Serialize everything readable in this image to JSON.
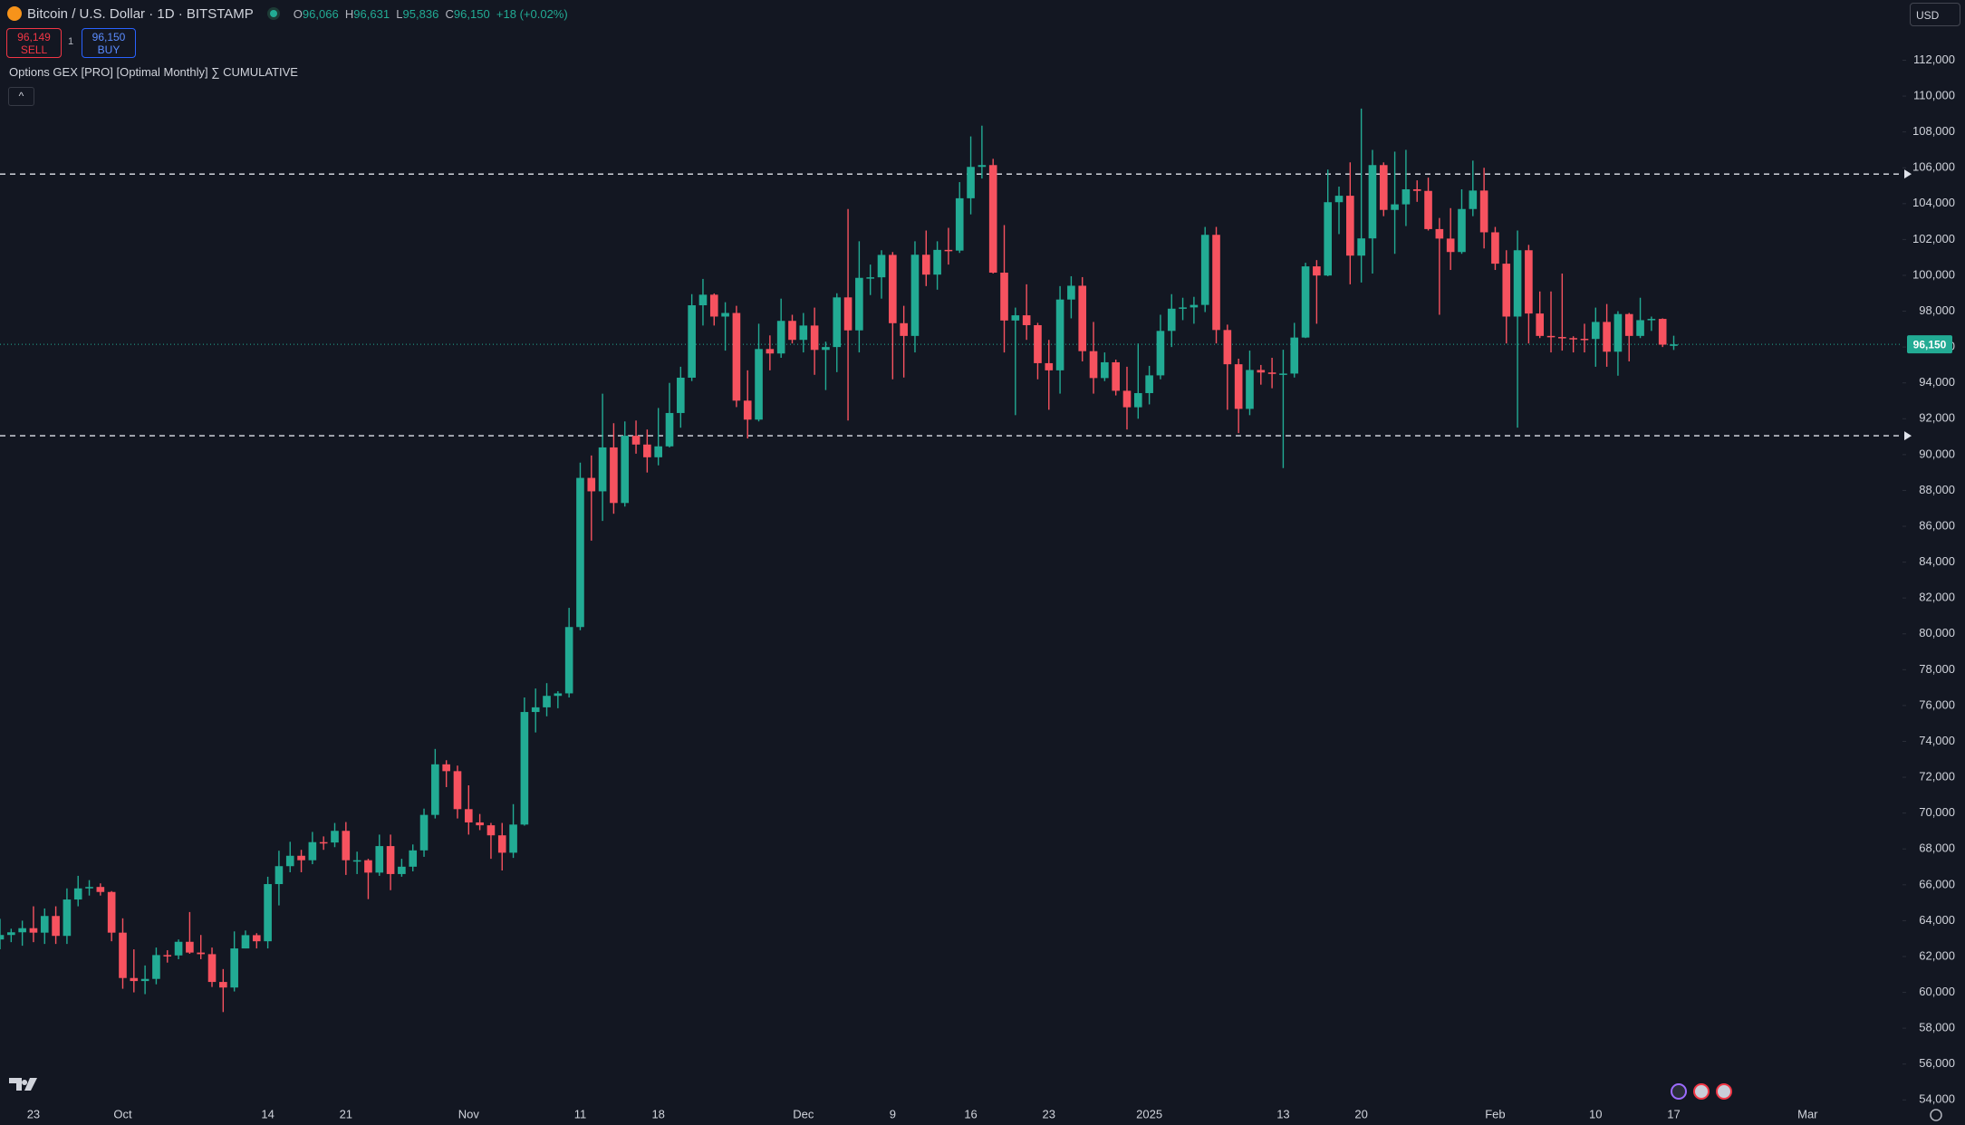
{
  "header": {
    "symbol": "Bitcoin / U.S. Dollar · 1D · BITSTAMP",
    "ohlc": [
      {
        "key": "O",
        "value": "96,066"
      },
      {
        "key": "H",
        "value": "96,631"
      },
      {
        "key": "L",
        "value": "95,836"
      },
      {
        "key": "C",
        "value": "96,150"
      }
    ],
    "change": "+18 (+0.02%)"
  },
  "trade": {
    "sell_price": "96,149",
    "sell": "SELL",
    "spread": "1",
    "buy_price": "96,150",
    "buy": "BUY"
  },
  "indicator": "Options GEX [PRO] [Optimal Monthly] ∑ CUMULATIVE",
  "currency": "USD",
  "chart_data": {
    "type": "candlestick",
    "up_color": "#22ab94",
    "down_color": "#f7525f",
    "grid": false,
    "categories": [
      null,
      null,
      null,
      "23",
      null,
      null,
      null,
      null,
      null,
      null,
      null,
      "Oct",
      null,
      null,
      null,
      null,
      null,
      null,
      null,
      null,
      null,
      null,
      null,
      null,
      "14",
      null,
      null,
      null,
      null,
      null,
      null,
      "21",
      null,
      null,
      null,
      null,
      null,
      null,
      null,
      null,
      null,
      null,
      "Nov",
      null,
      null,
      null,
      null,
      null,
      null,
      null,
      null,
      null,
      "11",
      null,
      null,
      null,
      null,
      null,
      null,
      "18",
      null,
      null,
      null,
      null,
      null,
      null,
      null,
      null,
      null,
      null,
      null,
      null,
      "Dec",
      null,
      null,
      null,
      null,
      null,
      null,
      null,
      "9",
      null,
      null,
      null,
      null,
      null,
      null,
      "16",
      null,
      null,
      null,
      null,
      null,
      null,
      "23",
      null,
      null,
      null,
      null,
      null,
      null,
      null,
      null,
      "2025",
      null,
      null,
      null,
      null,
      null,
      null,
      null,
      null,
      null,
      null,
      null,
      "13",
      null,
      null,
      null,
      null,
      null,
      null,
      "20",
      null,
      null,
      null,
      null,
      null,
      null,
      null,
      null,
      null,
      null,
      null,
      "Feb",
      null,
      null,
      null,
      null,
      null,
      null,
      null,
      null,
      "10",
      null,
      null,
      null,
      null,
      null,
      null,
      "17",
      null,
      null,
      null,
      null,
      null,
      null,
      null,
      null,
      null,
      null,
      null,
      "Mar",
      null,
      null,
      null,
      null,
      null,
      null,
      null,
      null
    ],
    "open": [
      62950,
      63200,
      63350,
      63580,
      63330,
      64260,
      63150,
      65180,
      65800,
      65880,
      65600,
      63330,
      60800,
      60630,
      60750,
      62080,
      62060,
      62820,
      62220,
      62130,
      60580,
      60270,
      62450,
      63190,
      62850,
      66040,
      67040,
      67620,
      67370,
      68380,
      68360,
      69010,
      67370,
      67370,
      66680,
      68160,
      66600,
      67010,
      67920,
      69900,
      72720,
      72340,
      70220,
      69480,
      69320,
      68760,
      67790,
      69360,
      75640,
      75900,
      76540,
      76680,
      80380,
      88700,
      87950,
      90400,
      87300,
      91050,
      90560,
      89850,
      90460,
      92320,
      94290,
      98330,
      98920,
      97700,
      97900,
      93010,
      91950,
      95890,
      95640,
      97460,
      96400,
      97200,
      95840,
      96000,
      98770,
      96930,
      99860,
      99890,
      101140,
      97330,
      96620,
      101150,
      100040,
      101420,
      101380,
      104300,
      106050,
      106150,
      100150,
      97480,
      97770,
      97220,
      95100,
      94700,
      98650,
      99420,
      95770,
      94270,
      95150,
      93560,
      92640,
      93430,
      94420,
      96900,
      98140,
      98210,
      98350,
      102260,
      96950,
      95040,
      92550,
      94720,
      94580,
      94500,
      94520,
      96530,
      100500,
      99990,
      104080,
      104440,
      101100,
      102060,
      106150,
      103650,
      103960,
      104800,
      104710,
      102580,
      102050,
      101300,
      103700,
      104730,
      102400,
      100650,
      97700,
      101400,
      97870,
      96620,
      96560,
      96500,
      96460,
      96450,
      97400,
      95740,
      97840,
      96620,
      97500,
      97570,
      96066,
      null,
      null,
      null,
      null,
      null,
      null,
      null,
      null,
      null,
      null,
      null,
      null,
      null,
      null,
      null,
      null,
      null,
      null,
      null,
      null
    ],
    "high": [
      64100,
      63550,
      64000,
      64800,
      64680,
      64800,
      65800,
      66500,
      66260,
      66080,
      65650,
      64130,
      62400,
      61500,
      62500,
      62350,
      62950,
      64480,
      63200,
      62500,
      61300,
      63400,
      63450,
      63300,
      66450,
      67900,
      68400,
      67950,
      68950,
      68700,
      69450,
      69500,
      67850,
      67450,
      68800,
      68800,
      67450,
      68250,
      70250,
      73580,
      72950,
      72650,
      71550,
      69950,
      69450,
      69450,
      70500,
      76450,
      76950,
      77250,
      76800,
      81450,
      89550,
      89950,
      93400,
      91750,
      91850,
      91900,
      91400,
      92600,
      94000,
      94900,
      98950,
      99800,
      98990,
      98500,
      98300,
      94700,
      97300,
      96650,
      98700,
      97800,
      97900,
      98200,
      96300,
      99000,
      103700,
      101900,
      100600,
      101400,
      101300,
      98300,
      101900,
      102500,
      101900,
      102650,
      105200,
      107750,
      108350,
      106500,
      102800,
      98200,
      99500,
      97350,
      96400,
      99400,
      99950,
      99900,
      97400,
      95700,
      95300,
      94900,
      96200,
      94950,
      97800,
      98950,
      98750,
      98800,
      102700,
      102700,
      97250,
      95350,
      95800,
      95000,
      95400,
      95850,
      97350,
      100700,
      100850,
      105900,
      104950,
      106300,
      109300,
      107000,
      106300,
      106900,
      107000,
      105300,
      105450,
      103200,
      103750,
      104800,
      106400,
      106000,
      102700,
      101400,
      102500,
      101700,
      99100,
      99100,
      100100,
      96600,
      97300,
      98200,
      98400,
      98000,
      97900,
      98750,
      97700,
      97600,
      96631,
      null,
      null,
      null,
      null,
      null,
      null,
      null,
      null,
      null,
      null,
      null,
      null,
      null,
      null,
      null,
      null,
      null,
      null,
      null,
      null
    ],
    "low": [
      62400,
      62800,
      62600,
      62800,
      62700,
      62700,
      62700,
      64800,
      65400,
      65400,
      62850,
      60200,
      60000,
      59900,
      60450,
      61660,
      61850,
      62150,
      61850,
      60300,
      58900,
      60050,
      62450,
      62450,
      62450,
      64850,
      66700,
      66700,
      67150,
      67950,
      68100,
      66550,
      66600,
      65200,
      66500,
      65700,
      66450,
      66750,
      67560,
      69700,
      71450,
      69700,
      68800,
      69050,
      67450,
      66800,
      67500,
      69300,
      74500,
      75400,
      75850,
      76450,
      80200,
      85200,
      86300,
      86700,
      87100,
      90050,
      89000,
      89400,
      90400,
      91500,
      94100,
      97200,
      97200,
      95800,
      92650,
      90900,
      91850,
      94700,
      95400,
      96200,
      95700,
      94450,
      93600,
      94600,
      91900,
      95700,
      98900,
      98700,
      94200,
      94300,
      95700,
      99400,
      99200,
      100600,
      101250,
      103400,
      105400,
      100100,
      95700,
      92200,
      96400,
      94200,
      92500,
      93400,
      97600,
      95200,
      93400,
      94100,
      93300,
      91400,
      92000,
      92800,
      94200,
      96000,
      97500,
      97300,
      97950,
      96200,
      92500,
      91200,
      92200,
      93900,
      93700,
      89250,
      94300,
      96500,
      97300,
      99950,
      102300,
      99500,
      99600,
      100100,
      103300,
      101200,
      102750,
      104100,
      102500,
      97800,
      100300,
      101200,
      103300,
      101500,
      100300,
      96200,
      91500,
      96200,
      96500,
      95700,
      95800,
      95700,
      95700,
      94900,
      94900,
      94400,
      95200,
      96500,
      96900,
      96000,
      95836,
      null,
      null,
      null,
      null,
      null,
      null,
      null,
      null,
      null,
      null,
      null,
      null,
      null,
      null,
      null,
      null,
      null,
      null,
      null,
      null
    ],
    "close": [
      63200,
      63350,
      63580,
      63330,
      64260,
      63150,
      65180,
      65800,
      65880,
      65600,
      63330,
      60800,
      60630,
      60750,
      62080,
      62060,
      62820,
      62220,
      62130,
      60580,
      60270,
      62450,
      63190,
      62850,
      66040,
      67040,
      67620,
      67370,
      68380,
      68360,
      69010,
      67370,
      67370,
      66680,
      68160,
      66600,
      67010,
      67920,
      69900,
      72720,
      72340,
      70220,
      69480,
      69320,
      68760,
      67790,
      69360,
      75640,
      75900,
      76540,
      76680,
      80380,
      88700,
      87950,
      90400,
      87300,
      91050,
      90560,
      89850,
      90460,
      92320,
      94290,
      98330,
      98920,
      97700,
      97900,
      93010,
      91950,
      95890,
      95640,
      97460,
      96400,
      97200,
      95840,
      96000,
      98770,
      96930,
      99860,
      99890,
      101140,
      97330,
      96620,
      101150,
      100040,
      101420,
      101380,
      104300,
      106050,
      106150,
      100150,
      97480,
      97770,
      97220,
      95100,
      94700,
      98650,
      99420,
      95770,
      94270,
      95150,
      93560,
      92640,
      93430,
      94420,
      96900,
      98140,
      98210,
      98350,
      102260,
      96950,
      95040,
      92550,
      94720,
      94580,
      94500,
      94520,
      96530,
      100500,
      99990,
      104080,
      104440,
      101100,
      102060,
      106150,
      103650,
      103960,
      104800,
      104710,
      102580,
      102050,
      101300,
      103700,
      104730,
      102400,
      100650,
      97700,
      101400,
      97870,
      96620,
      96560,
      96500,
      96460,
      96450,
      97400,
      95740,
      97840,
      96620,
      97500,
      97570,
      96132,
      96150,
      null,
      null,
      null,
      null,
      null,
      null,
      null,
      null,
      null,
      null,
      null,
      null,
      null,
      null,
      null,
      null,
      null,
      null,
      null,
      null
    ],
    "ylim": [
      52600,
      115360
    ],
    "yticks": [
      {
        "value": 54000,
        "label": "54,000"
      },
      {
        "value": 56000,
        "label": "56,000"
      },
      {
        "value": 58000,
        "label": "58,000"
      },
      {
        "value": 60000,
        "label": "60,000"
      },
      {
        "value": 62000,
        "label": "62,000"
      },
      {
        "value": 64000,
        "label": "64,000"
      },
      {
        "value": 66000,
        "label": "66,000"
      },
      {
        "value": 68000,
        "label": "68,000"
      },
      {
        "value": 70000,
        "label": "70,000"
      },
      {
        "value": 72000,
        "label": "72,000"
      },
      {
        "value": 74000,
        "label": "74,000"
      },
      {
        "value": 76000,
        "label": "76,000"
      },
      {
        "value": 78000,
        "label": "78,000"
      },
      {
        "value": 80000,
        "label": "80,000"
      },
      {
        "value": 82000,
        "label": "82,000"
      },
      {
        "value": 84000,
        "label": "84,000"
      },
      {
        "value": 86000,
        "label": "86,000"
      },
      {
        "value": 88000,
        "label": "88,000"
      },
      {
        "value": 90000,
        "label": "90,000"
      },
      {
        "value": 92000,
        "label": "92,000"
      },
      {
        "value": 94000,
        "label": "94,000"
      },
      {
        "value": 96000,
        "label": "96,000"
      },
      {
        "value": 98000,
        "label": "98,000"
      },
      {
        "value": 100000,
        "label": "100,000"
      },
      {
        "value": 102000,
        "label": "102,000"
      },
      {
        "value": 104000,
        "label": "104,000"
      },
      {
        "value": 106000,
        "label": "106,000"
      },
      {
        "value": 108000,
        "label": "108,000"
      },
      {
        "value": 110000,
        "label": "110,000"
      },
      {
        "value": 112000,
        "label": "112,000"
      }
    ],
    "levels": [
      105650,
      91050
    ],
    "last_price": {
      "value": 96150,
      "label": "96,150"
    }
  }
}
